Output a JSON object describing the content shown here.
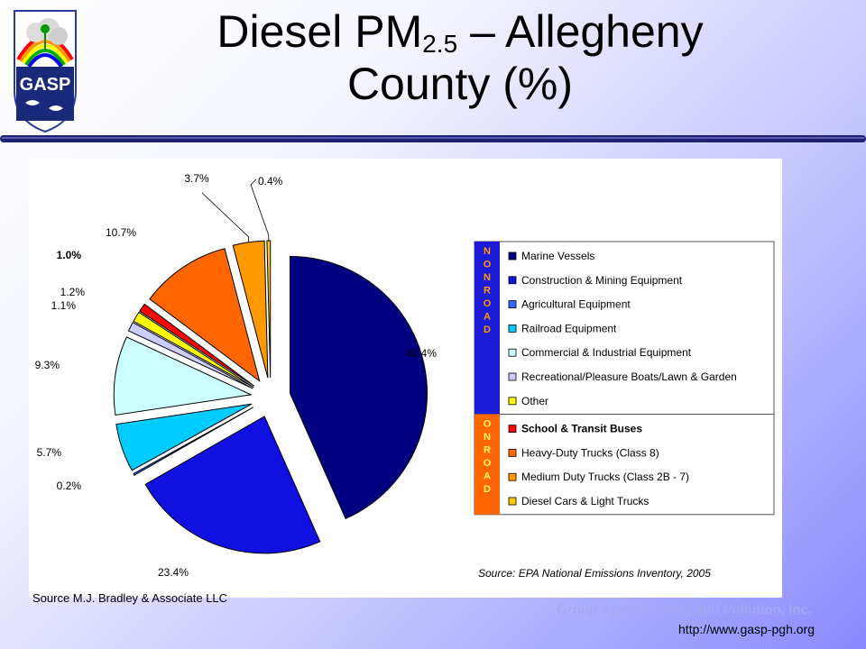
{
  "logo": {
    "text": "GASP"
  },
  "slide": {
    "title_main": "Diesel PM",
    "title_sub": "2.5",
    "title_rest": " – Allegheny",
    "title_line2": "County (%)"
  },
  "colors": {
    "navy_rule": "#1f1f73",
    "nonroad_band": "#1c1cd8",
    "onroad_band": "#ff6600"
  },
  "chart_data": {
    "type": "pie",
    "title": "",
    "legend_position": "right",
    "legend_groups": [
      {
        "name": "NONROAD",
        "letters": [
          "N",
          "O",
          "N",
          "R",
          "O",
          "A",
          "D"
        ]
      },
      {
        "name": "ONROAD",
        "letters": [
          "O",
          "N",
          "R",
          "O",
          "A",
          "D"
        ]
      }
    ],
    "slices": [
      {
        "label": "Marine Vessels",
        "value": 43.4,
        "display": "43.4%",
        "group": "NONROAD",
        "color": "#000080",
        "bold": false
      },
      {
        "label": "Construction & Mining Equipment",
        "value": 23.4,
        "display": "23.4%",
        "group": "NONROAD",
        "color": "#1010e0",
        "bold": false
      },
      {
        "label": "Agricultural Equipment",
        "value": 0.2,
        "display": "0.2%",
        "group": "NONROAD",
        "color": "#3366ff",
        "bold": false
      },
      {
        "label": "Railroad Equipment",
        "value": 5.7,
        "display": "5.7%",
        "group": "NONROAD",
        "color": "#00ccff",
        "bold": false
      },
      {
        "label": "Commercial & Industrial Equipment",
        "value": 9.3,
        "display": "9.3%",
        "group": "NONROAD",
        "color": "#ccffff",
        "bold": false
      },
      {
        "label": "Recreational/Pleasure Boats/Lawn & Garden",
        "value": 1.1,
        "display": "1.1%",
        "group": "NONROAD",
        "color": "#ccccff",
        "bold": false
      },
      {
        "label": "Other",
        "value": 1.2,
        "display": "1.2%",
        "group": "NONROAD",
        "color": "#ffff00",
        "bold": false
      },
      {
        "label": "School & Transit Buses",
        "value": 1.0,
        "display": "1.0%",
        "group": "ONROAD",
        "color": "#ff0000",
        "bold": true
      },
      {
        "label": "Heavy-Duty Trucks (Class 8)",
        "value": 10.7,
        "display": "10.7%",
        "group": "ONROAD",
        "color": "#ff6600",
        "bold": false
      },
      {
        "label": "Medium Duty Trucks (Class 2B - 7)",
        "value": 3.7,
        "display": "3.7%",
        "group": "ONROAD",
        "color": "#ff9900",
        "bold": false
      },
      {
        "label": "Diesel Cars & Light Trucks",
        "value": 0.4,
        "display": "0.4%",
        "group": "ONROAD",
        "color": "#ffcc00",
        "bold": false
      }
    ],
    "source_note": "Source:  EPA National Emissions Inventory, 2005"
  },
  "credits": {
    "source_left": "Source M.J. Bradley & Associate LLC",
    "org": "Group Against Smog and Pollution, Inc.",
    "url": "http://www.gasp-pgh.org"
  }
}
